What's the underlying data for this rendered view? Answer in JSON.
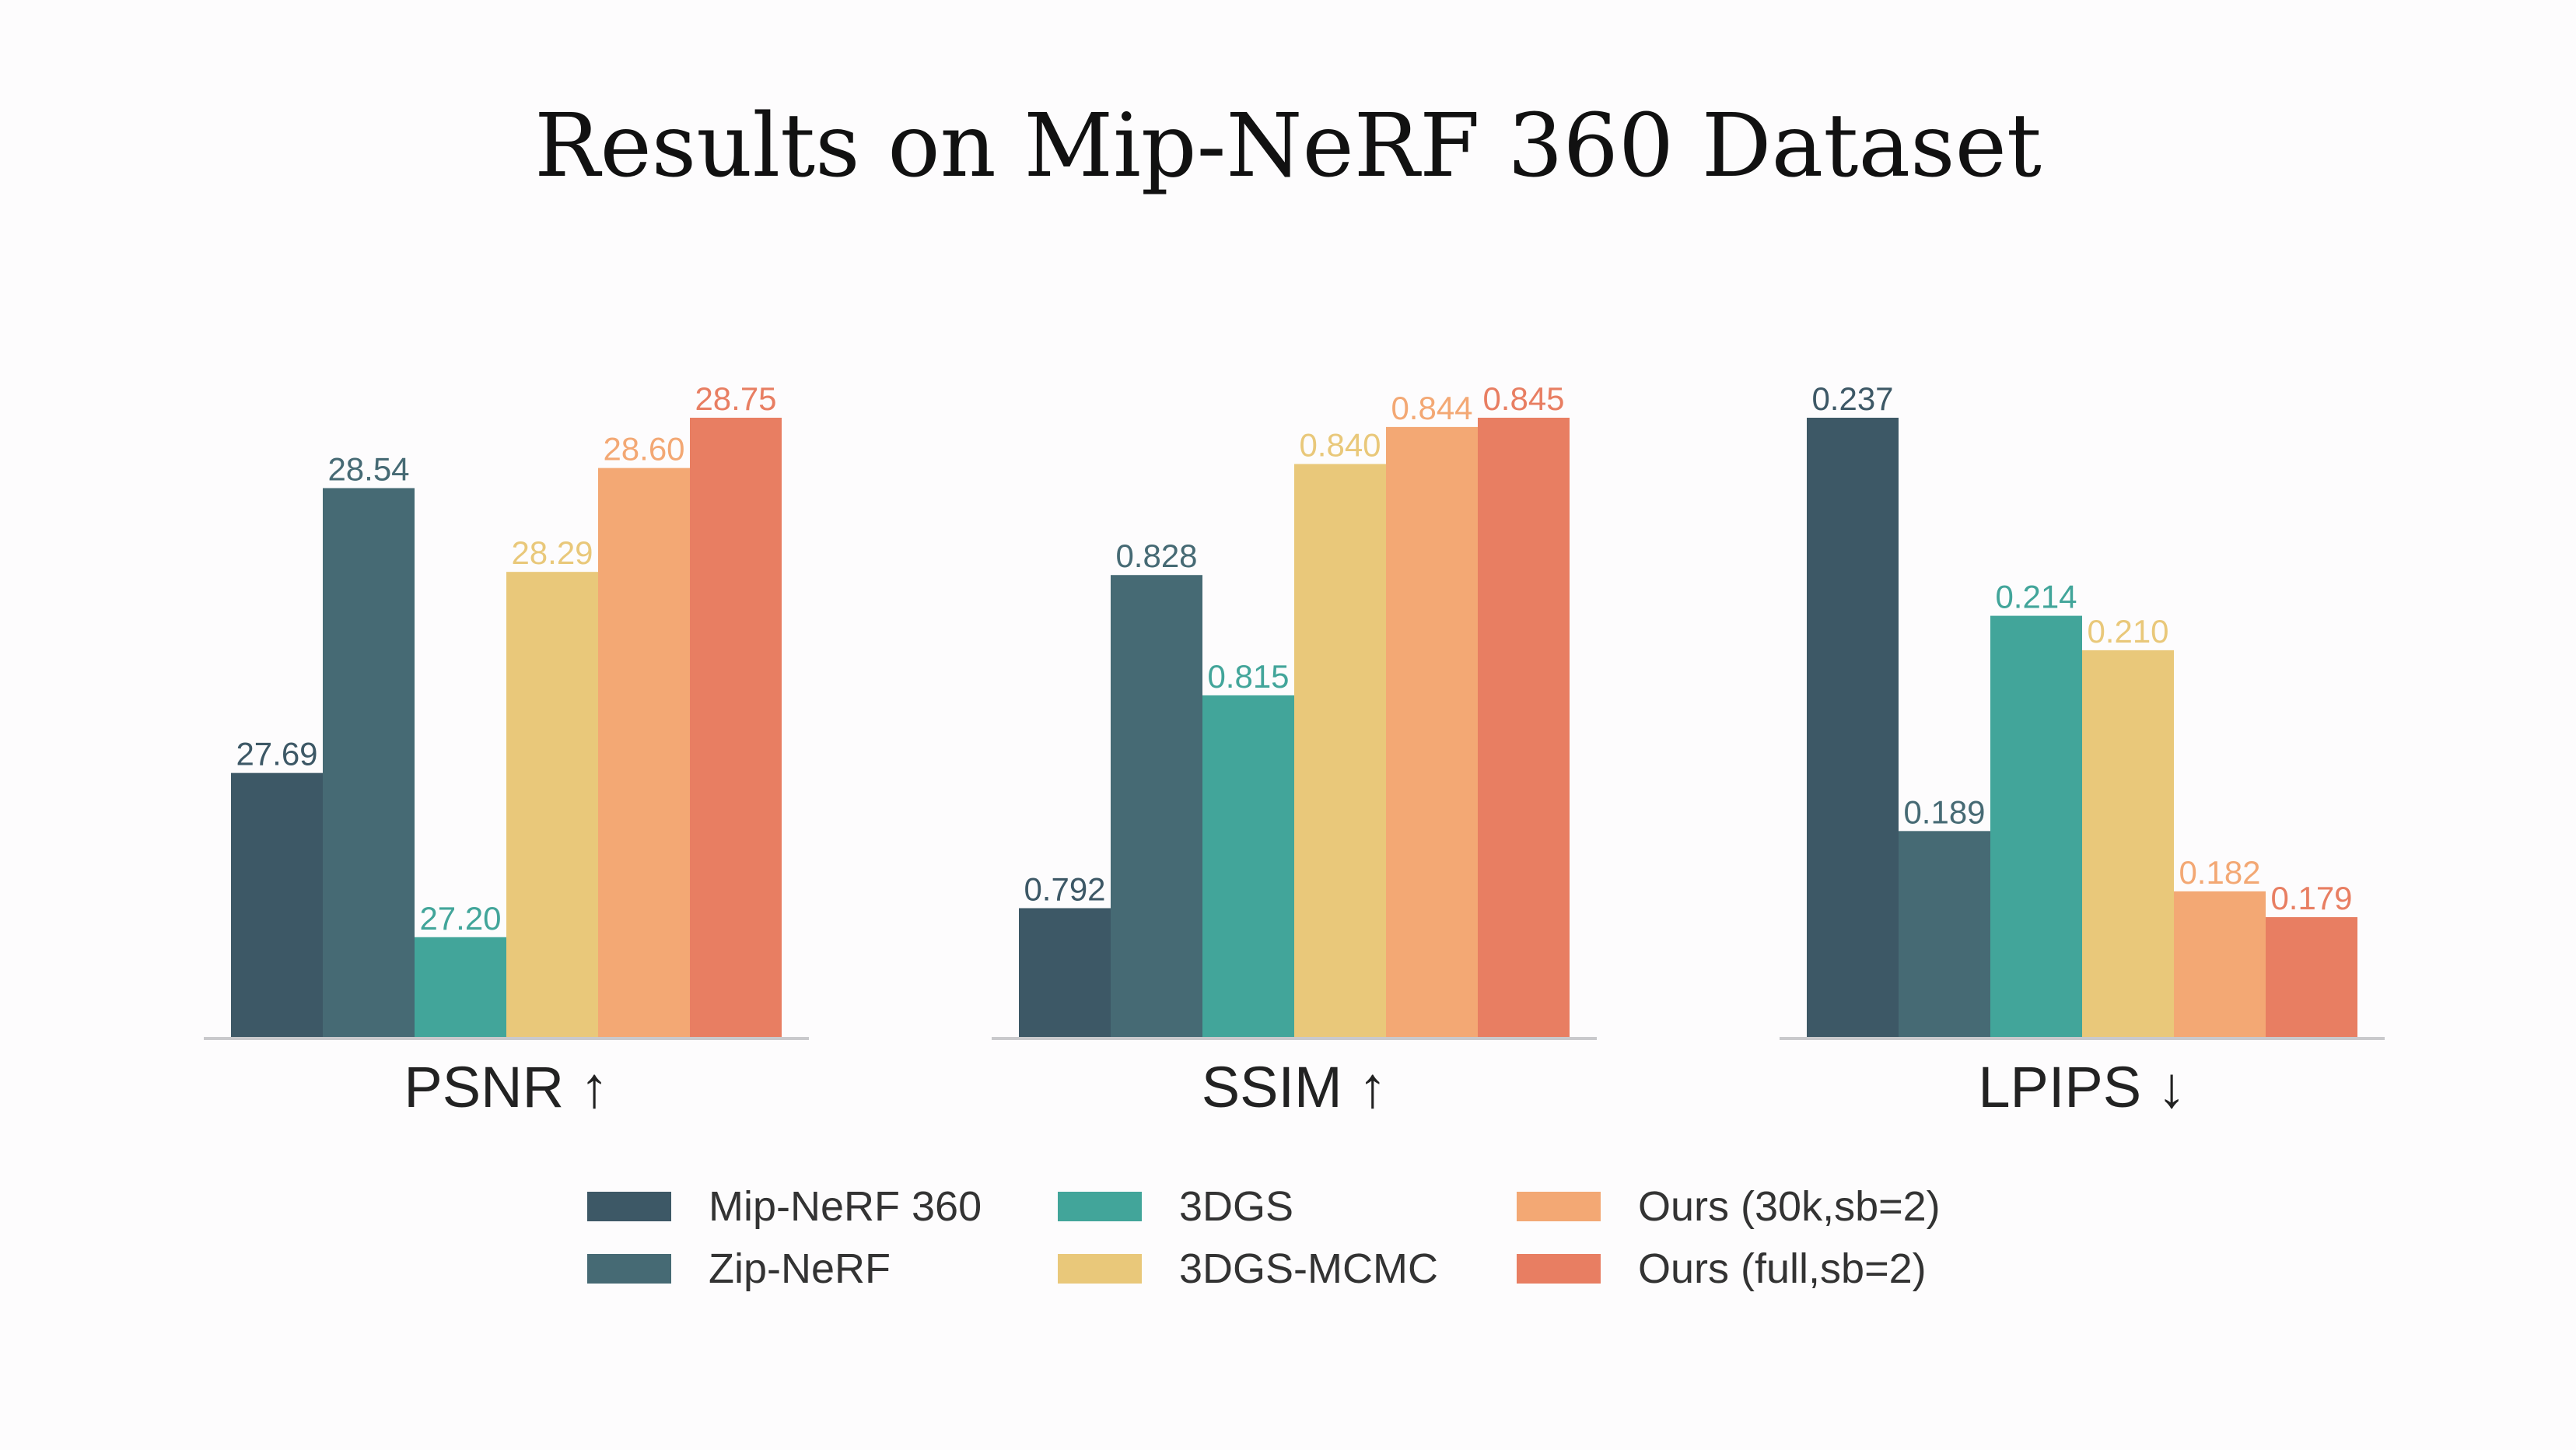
{
  "chart_data": {
    "type": "bar",
    "title": "Results on Mip-NeRF 360 Dataset",
    "series": [
      {
        "name": "Mip-NeRF 360",
        "color": "#3d5866"
      },
      {
        "name": "Zip-NeRF",
        "color": "#466a74"
      },
      {
        "name": "3DGS",
        "color": "#42a59a"
      },
      {
        "name": "3DGS-MCMC",
        "color": "#e9c87a"
      },
      {
        "name": "Ours (30k,sb=2)",
        "color": "#f3a874"
      },
      {
        "name": "Ours (full,sb=2)",
        "color": "#e87e62"
      }
    ],
    "panels": [
      {
        "label": "PSNR ↑",
        "values": [
          27.69,
          28.54,
          27.2,
          28.29,
          28.6,
          28.75
        ],
        "value_labels": [
          "27.69",
          "28.54",
          "27.20",
          "28.29",
          "28.60",
          "28.75"
        ],
        "ylim": [
          26.9,
          28.75
        ]
      },
      {
        "label": "SSIM ↑",
        "values": [
          0.792,
          0.828,
          0.815,
          0.84,
          0.844,
          0.845
        ],
        "value_labels": [
          "0.792",
          "0.828",
          "0.815",
          "0.840",
          "0.844",
          "0.845"
        ],
        "ylim": [
          0.778,
          0.845
        ]
      },
      {
        "label": "LPIPS ↓",
        "values": [
          0.237,
          0.189,
          0.214,
          0.21,
          0.182,
          0.179
        ],
        "value_labels": [
          "0.237",
          "0.189",
          "0.214",
          "0.210",
          "0.182",
          "0.179"
        ],
        "ylim": [
          0.165,
          0.237
        ]
      }
    ],
    "legend_position": "bottom-center",
    "grid": false
  }
}
